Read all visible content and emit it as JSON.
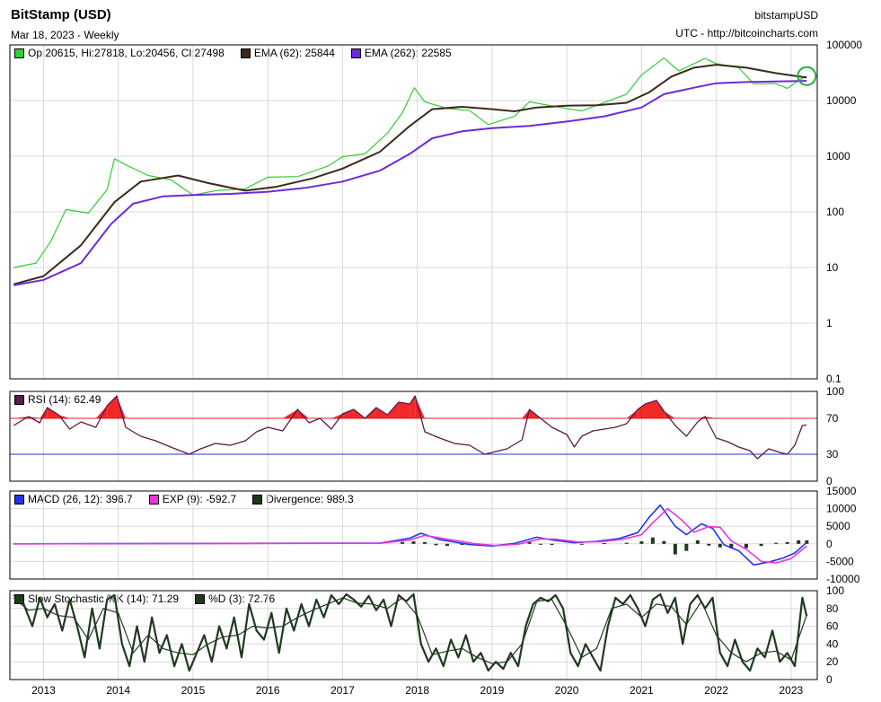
{
  "header": {
    "title": "BitStamp (USD)",
    "date_line": "Mar 18, 2023 - Weekly",
    "symbol": "bitstampUSD",
    "source": "UTC - http://bitcoincharts.com"
  },
  "legends": {
    "ohlc": "Op:20615, Hi:27818, Lo:20456, Cl:27498",
    "ema62": "EMA (62): 25844",
    "ema262": "EMA (262): 22585",
    "rsi": "RSI (14): 62.49",
    "macd": "MACD (26, 12): 396.7",
    "exp": "EXP (9): -592.7",
    "div": "Divergence: 989.3",
    "stoch_k": "Slow Stochastic %K (14): 71.29",
    "stoch_d": "%D (3): 72.76"
  },
  "colors": {
    "ohlc": "#33cc33",
    "ema62": "#3b2a1a",
    "ema262": "#6b2bd9",
    "rsi": "#5a1a4a",
    "rsi_fill": "#ee1111",
    "rsi70": "#dd2222",
    "rsi30": "#2233cc",
    "macd": "#2233ee",
    "exp": "#ee33dd",
    "div": "#1a3a1a",
    "stoch": "#1e3a1e"
  },
  "chart_data": [
    {
      "type": "line",
      "panel": "price",
      "scale": "log",
      "ylim": [
        0.1,
        100000
      ],
      "y_ticks": [
        "100000",
        "10000",
        "1000",
        "100",
        "10",
        "1",
        "0.1"
      ],
      "x_ticks": [
        "2013",
        "2014",
        "2015",
        "2016",
        "2017",
        "2018",
        "2019",
        "2020",
        "2021",
        "2022",
        "2023"
      ],
      "series": [
        {
          "name": "Close",
          "x": [
            2012.6,
            2012.9,
            2013.1,
            2013.3,
            2013.6,
            2013.85,
            2013.95,
            2014.1,
            2014.4,
            2014.7,
            2015.0,
            2015.3,
            2015.7,
            2016.0,
            2016.4,
            2016.8,
            2017.0,
            2017.3,
            2017.6,
            2017.8,
            2017.96,
            2018.1,
            2018.4,
            2018.7,
            2018.95,
            2019.3,
            2019.5,
            2019.8,
            2020.0,
            2020.2,
            2020.5,
            2020.8,
            2021.0,
            2021.3,
            2021.5,
            2021.85,
            2022.0,
            2022.3,
            2022.5,
            2022.8,
            2022.95,
            2023.1,
            2023.21
          ],
          "values": [
            10,
            12,
            30,
            110,
            95,
            250,
            900,
            700,
            450,
            380,
            200,
            240,
            260,
            420,
            430,
            660,
            980,
            1100,
            2600,
            6000,
            17000,
            9500,
            7200,
            6600,
            3700,
            5200,
            9500,
            8000,
            7200,
            6500,
            9200,
            13000,
            29000,
            58000,
            34000,
            57000,
            46000,
            39000,
            20000,
            20000,
            16500,
            23000,
            27498
          ]
        },
        {
          "name": "EMA (62)",
          "x": [
            2012.6,
            2013.0,
            2013.5,
            2013.95,
            2014.3,
            2014.8,
            2015.2,
            2015.7,
            2016.1,
            2016.6,
            2017.0,
            2017.5,
            2017.9,
            2018.2,
            2018.6,
            2019.0,
            2019.3,
            2019.6,
            2020.0,
            2020.4,
            2020.8,
            2021.1,
            2021.4,
            2021.7,
            2022.0,
            2022.4,
            2022.8,
            2023.21
          ],
          "values": [
            5,
            7,
            25,
            150,
            350,
            450,
            330,
            240,
            280,
            400,
            600,
            1200,
            3500,
            7000,
            7700,
            7000,
            6400,
            7500,
            8100,
            8200,
            9100,
            14000,
            27000,
            39000,
            44000,
            39000,
            31000,
            25844
          ]
        },
        {
          "name": "EMA (262)",
          "x": [
            2012.6,
            2013.0,
            2013.5,
            2013.9,
            2014.2,
            2014.6,
            2015.0,
            2015.5,
            2016.0,
            2016.5,
            2017.0,
            2017.5,
            2017.9,
            2018.2,
            2018.6,
            2019.0,
            2019.5,
            2020.0,
            2020.5,
            2021.0,
            2021.3,
            2021.7,
            2022.0,
            2022.4,
            2022.8,
            2023.21
          ],
          "values": [
            4.8,
            6,
            12,
            60,
            140,
            190,
            200,
            210,
            230,
            270,
            350,
            550,
            1100,
            2100,
            2800,
            3200,
            3500,
            4200,
            5200,
            7500,
            13000,
            17000,
            20500,
            21500,
            22000,
            22585
          ]
        }
      ]
    },
    {
      "type": "line",
      "panel": "rsi",
      "ylim": [
        0,
        100
      ],
      "y_ticks": [
        "100",
        "70",
        "30",
        "0"
      ],
      "hlines": [
        70,
        30
      ],
      "series": [
        {
          "name": "RSI (14)",
          "x": [
            2012.6,
            2012.8,
            2012.95,
            2013.05,
            2013.2,
            2013.35,
            2013.5,
            2013.7,
            2013.85,
            2013.98,
            2014.1,
            2014.3,
            2014.5,
            2014.7,
            2014.95,
            2015.1,
            2015.3,
            2015.5,
            2015.7,
            2015.85,
            2016.0,
            2016.2,
            2016.4,
            2016.55,
            2016.7,
            2016.85,
            2017.0,
            2017.15,
            2017.3,
            2017.45,
            2017.6,
            2017.75,
            2017.9,
            2017.97,
            2018.1,
            2018.3,
            2018.5,
            2018.7,
            2018.9,
            2019.0,
            2019.2,
            2019.4,
            2019.5,
            2019.65,
            2019.8,
            2020.0,
            2020.1,
            2020.2,
            2020.35,
            2020.5,
            2020.65,
            2020.8,
            2020.95,
            2021.05,
            2021.2,
            2021.3,
            2021.45,
            2021.6,
            2021.75,
            2021.85,
            2022.0,
            2022.15,
            2022.3,
            2022.45,
            2022.55,
            2022.7,
            2022.85,
            2022.95,
            2023.05,
            2023.15,
            2023.21
          ],
          "values": [
            62,
            72,
            65,
            82,
            74,
            58,
            66,
            60,
            84,
            95,
            60,
            50,
            45,
            38,
            30,
            36,
            42,
            40,
            45,
            55,
            60,
            56,
            80,
            65,
            70,
            58,
            75,
            80,
            70,
            82,
            74,
            88,
            86,
            95,
            55,
            48,
            42,
            40,
            30,
            32,
            36,
            46,
            80,
            70,
            60,
            52,
            38,
            50,
            56,
            58,
            60,
            64,
            80,
            86,
            90,
            78,
            62,
            50,
            66,
            72,
            48,
            44,
            38,
            34,
            25,
            36,
            32,
            30,
            40,
            62,
            62.49
          ]
        }
      ]
    },
    {
      "type": "line",
      "panel": "macd",
      "ylim": [
        -10000,
        15000
      ],
      "y_ticks": [
        "15000",
        "10000",
        "5000",
        "0",
        "-5000",
        "-10000"
      ],
      "series": [
        {
          "name": "MACD (26, 12)",
          "x": [
            2012.6,
            2017.5,
            2017.9,
            2018.05,
            2018.3,
            2018.7,
            2019.0,
            2019.3,
            2019.6,
            2019.8,
            2020.1,
            2020.4,
            2020.7,
            2020.95,
            2021.1,
            2021.25,
            2021.45,
            2021.6,
            2021.8,
            2021.95,
            2022.1,
            2022.3,
            2022.5,
            2022.7,
            2022.9,
            2023.05,
            2023.21
          ],
          "values": [
            0,
            200,
            1600,
            3000,
            1200,
            -200,
            -600,
            100,
            1900,
            1100,
            300,
            700,
            1500,
            3200,
            7500,
            11000,
            5000,
            2600,
            5700,
            4400,
            -200,
            -2000,
            -6000,
            -5200,
            -4000,
            -2600,
            396.7
          ]
        },
        {
          "name": "EXP (9)",
          "x": [
            2012.6,
            2017.5,
            2017.9,
            2018.1,
            2018.35,
            2018.75,
            2019.05,
            2019.35,
            2019.65,
            2019.85,
            2020.15,
            2020.45,
            2020.75,
            2021.0,
            2021.15,
            2021.35,
            2021.55,
            2021.7,
            2021.9,
            2022.05,
            2022.2,
            2022.4,
            2022.6,
            2022.8,
            2023.0,
            2023.21
          ],
          "values": [
            0,
            150,
            1100,
            2400,
            1500,
            100,
            -500,
            -100,
            1400,
            1300,
            500,
            600,
            1300,
            2600,
            6000,
            10000,
            6500,
            3300,
            4900,
            4700,
            800,
            -1500,
            -5000,
            -5400,
            -4200,
            -592.7
          ]
        }
      ],
      "bars": {
        "name": "Divergence",
        "x": [
          2017.8,
          2017.95,
          2018.1,
          2018.25,
          2018.4,
          2018.6,
          2018.8,
          2019.3,
          2019.5,
          2019.65,
          2019.8,
          2020.2,
          2020.5,
          2020.8,
          2021.0,
          2021.15,
          2021.3,
          2021.45,
          2021.6,
          2021.75,
          2021.9,
          2022.05,
          2022.2,
          2022.4,
          2022.6,
          2022.8,
          2022.95,
          2023.1,
          2023.21
        ],
        "values": [
          500,
          700,
          500,
          -400,
          -600,
          -300,
          -200,
          300,
          500,
          -200,
          -300,
          -200,
          200,
          300,
          700,
          1800,
          800,
          -3000,
          -2000,
          1000,
          -500,
          -1000,
          -1300,
          -1200,
          -600,
          300,
          500,
          1000,
          989.3
        ]
      }
    },
    {
      "type": "line",
      "panel": "stochastic",
      "ylim": [
        0,
        100
      ],
      "y_ticks": [
        "100",
        "80",
        "60",
        "40",
        "20",
        "0"
      ],
      "series": [
        {
          "name": "Slow Stochastic %K (14)",
          "x": [
            2012.6,
            2012.72,
            2012.85,
            2012.95,
            2013.05,
            2013.15,
            2013.25,
            2013.35,
            2013.45,
            2013.55,
            2013.65,
            2013.75,
            2013.85,
            2013.95,
            2014.05,
            2014.15,
            2014.25,
            2014.35,
            2014.45,
            2014.55,
            2014.65,
            2014.75,
            2014.85,
            2014.95,
            2015.05,
            2015.15,
            2015.25,
            2015.35,
            2015.45,
            2015.55,
            2015.65,
            2015.75,
            2015.85,
            2015.95,
            2016.05,
            2016.15,
            2016.25,
            2016.35,
            2016.45,
            2016.55,
            2016.65,
            2016.75,
            2016.85,
            2016.95,
            2017.05,
            2017.15,
            2017.25,
            2017.35,
            2017.45,
            2017.55,
            2017.65,
            2017.75,
            2017.85,
            2017.95,
            2018.05,
            2018.15,
            2018.25,
            2018.35,
            2018.45,
            2018.55,
            2018.65,
            2018.75,
            2018.85,
            2018.95,
            2019.05,
            2019.15,
            2019.25,
            2019.35,
            2019.45,
            2019.55,
            2019.65,
            2019.75,
            2019.85,
            2019.95,
            2020.05,
            2020.15,
            2020.25,
            2020.35,
            2020.45,
            2020.55,
            2020.65,
            2020.75,
            2020.85,
            2020.95,
            2021.05,
            2021.15,
            2021.25,
            2021.35,
            2021.45,
            2021.55,
            2021.65,
            2021.75,
            2021.85,
            2021.95,
            2022.05,
            2022.15,
            2022.25,
            2022.35,
            2022.45,
            2022.55,
            2022.65,
            2022.75,
            2022.85,
            2022.95,
            2023.05,
            2023.15,
            2023.21
          ],
          "values": [
            95,
            88,
            60,
            92,
            70,
            85,
            55,
            90,
            60,
            25,
            80,
            35,
            90,
            95,
            40,
            15,
            60,
            20,
            70,
            30,
            50,
            15,
            40,
            10,
            30,
            50,
            20,
            60,
            35,
            70,
            25,
            85,
            55,
            45,
            75,
            30,
            80,
            55,
            85,
            60,
            90,
            70,
            95,
            85,
            96,
            90,
            82,
            94,
            78,
            90,
            60,
            95,
            88,
            96,
            40,
            20,
            35,
            15,
            45,
            25,
            50,
            20,
            30,
            10,
            20,
            12,
            30,
            15,
            60,
            85,
            92,
            88,
            95,
            80,
            30,
            15,
            40,
            25,
            10,
            60,
            92,
            85,
            95,
            80,
            60,
            90,
            96,
            75,
            92,
            40,
            85,
            95,
            80,
            92,
            30,
            15,
            45,
            20,
            10,
            35,
            25,
            55,
            20,
            30,
            15,
            92,
            71.29
          ]
        },
        {
          "name": "%D (3)",
          "x": [
            2012.6,
            2012.8,
            2013.0,
            2013.2,
            2013.4,
            2013.6,
            2013.8,
            2014.0,
            2014.2,
            2014.4,
            2014.6,
            2014.8,
            2015.0,
            2015.2,
            2015.4,
            2015.6,
            2015.8,
            2016.0,
            2016.2,
            2016.4,
            2016.6,
            2016.8,
            2017.0,
            2017.2,
            2017.4,
            2017.6,
            2017.8,
            2018.0,
            2018.2,
            2018.4,
            2018.6,
            2018.8,
            2019.0,
            2019.2,
            2019.4,
            2019.6,
            2019.8,
            2020.0,
            2020.2,
            2020.4,
            2020.6,
            2020.8,
            2021.0,
            2021.2,
            2021.4,
            2021.6,
            2021.8,
            2022.0,
            2022.2,
            2022.4,
            2022.6,
            2022.8,
            2023.0,
            2023.21
          ],
          "values": [
            92,
            78,
            80,
            72,
            70,
            45,
            80,
            75,
            30,
            50,
            35,
            30,
            28,
            40,
            48,
            50,
            60,
            58,
            60,
            70,
            78,
            85,
            92,
            86,
            85,
            80,
            92,
            72,
            28,
            32,
            35,
            25,
            18,
            20,
            40,
            88,
            90,
            60,
            25,
            35,
            80,
            85,
            70,
            85,
            82,
            62,
            88,
            50,
            30,
            20,
            30,
            32,
            22,
            72.76
          ]
        }
      ]
    }
  ]
}
